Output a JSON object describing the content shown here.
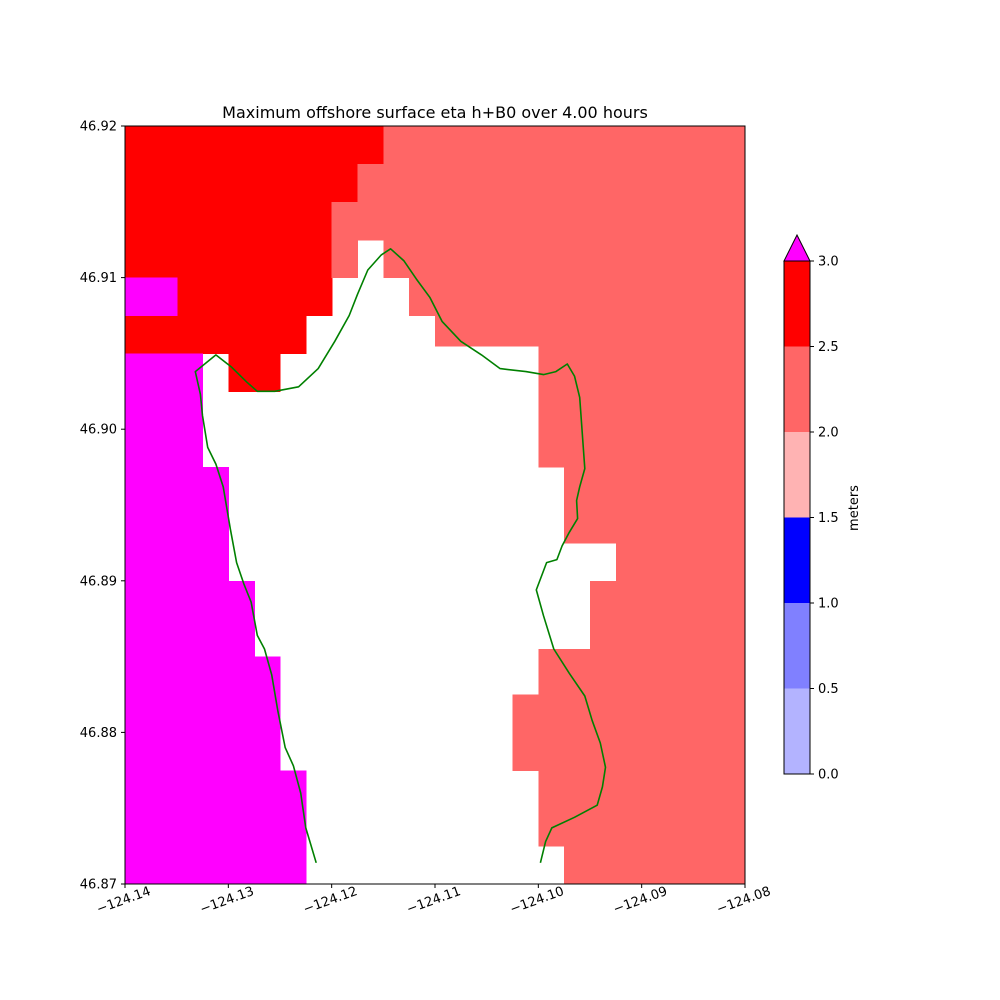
{
  "chart_data": {
    "type": "heatmap",
    "title": "Maximum offshore surface eta h+B0 over 4.00 hours",
    "xlabel": "",
    "ylabel": "",
    "xlim": [
      -124.14,
      -124.08
    ],
    "ylim": [
      46.87,
      46.92
    ],
    "xticks": [
      "−124.14",
      "−124.13",
      "−124.12",
      "−124.11",
      "−124.10",
      "−124.09",
      "−124.08"
    ],
    "xtick_values": [
      -124.14,
      -124.13,
      -124.12,
      -124.11,
      -124.1,
      -124.09,
      -124.08
    ],
    "yticks": [
      "46.87",
      "46.88",
      "46.89",
      "46.90",
      "46.91",
      "46.92"
    ],
    "ytick_values": [
      46.87,
      46.88,
      46.89,
      46.9,
      46.91,
      46.92
    ],
    "grid": false,
    "colorbar": {
      "label": "meters",
      "levels": [
        0.0,
        0.5,
        1.0,
        1.5,
        2.0,
        2.5,
        3.0
      ],
      "tick_labels": [
        "0.0",
        "0.5",
        "1.0",
        "1.5",
        "2.0",
        "2.5",
        "3.0"
      ],
      "colors": [
        "#b3b3ff",
        "#8080ff",
        "#0000ff",
        "#ffb3b3",
        "#ff6666",
        "#ff0000"
      ],
      "over_color": "#ff00ff",
      "extend": "max"
    },
    "cell_classes": {
      "over": "> 3.0 m",
      "high": "2.5 - 3.0 m",
      "mid": "2.0 - 2.5 m"
    },
    "regions": [
      {
        "level": "high",
        "lon": [
          -124.14,
          -124.115
        ],
        "lat": [
          46.9175,
          46.92
        ]
      },
      {
        "level": "high",
        "lon": [
          -124.14,
          -124.1175
        ],
        "lat": [
          46.915,
          46.9175
        ]
      },
      {
        "level": "high",
        "lon": [
          -124.14,
          -124.12
        ],
        "lat": [
          46.91,
          46.915
        ]
      },
      {
        "level": "high",
        "lon": [
          -124.135,
          -124.12
        ],
        "lat": [
          46.9075,
          46.91
        ]
      },
      {
        "level": "high",
        "lon": [
          -124.14,
          -124.1225
        ],
        "lat": [
          46.905,
          46.9075
        ]
      },
      {
        "level": "high",
        "lon": [
          -124.13,
          -124.125
        ],
        "lat": [
          46.9025,
          46.905
        ]
      },
      {
        "level": "over",
        "lon": [
          -124.14,
          -124.135
        ],
        "lat": [
          46.9075,
          46.91
        ]
      },
      {
        "level": "over",
        "lon": [
          -124.14,
          -124.1325
        ],
        "lat": [
          46.8975,
          46.905
        ]
      },
      {
        "level": "over",
        "lon": [
          -124.14,
          -124.13
        ],
        "lat": [
          46.89,
          46.8975
        ]
      },
      {
        "level": "over",
        "lon": [
          -124.14,
          -124.1275
        ],
        "lat": [
          46.885,
          46.89
        ]
      },
      {
        "level": "over",
        "lon": [
          -124.14,
          -124.125
        ],
        "lat": [
          46.8775,
          46.885
        ]
      },
      {
        "level": "over",
        "lon": [
          -124.14,
          -124.1225
        ],
        "lat": [
          46.87,
          46.8775
        ]
      },
      {
        "level": "mid",
        "lon": [
          -124.115,
          -124.08
        ],
        "lat": [
          46.9175,
          46.92
        ]
      },
      {
        "level": "mid",
        "lon": [
          -124.1175,
          -124.08
        ],
        "lat": [
          46.915,
          46.9175
        ]
      },
      {
        "level": "mid",
        "lon": [
          -124.12,
          -124.08
        ],
        "lat": [
          46.9125,
          46.915
        ]
      },
      {
        "level": "mid",
        "lon": [
          -124.12,
          -124.1175
        ],
        "lat": [
          46.91,
          46.9125
        ]
      },
      {
        "level": "mid",
        "lon": [
          -124.115,
          -124.08
        ],
        "lat": [
          46.91,
          46.9125
        ]
      },
      {
        "level": "mid",
        "lon": [
          -124.1125,
          -124.08
        ],
        "lat": [
          46.9075,
          46.91
        ]
      },
      {
        "level": "mid",
        "lon": [
          -124.11,
          -124.08
        ],
        "lat": [
          46.9055,
          46.9075
        ]
      },
      {
        "level": "mid",
        "lon": [
          -124.1,
          -124.08
        ],
        "lat": [
          46.8975,
          46.9055
        ]
      },
      {
        "level": "mid",
        "lon": [
          -124.0975,
          -124.08
        ],
        "lat": [
          46.8925,
          46.8975
        ]
      },
      {
        "level": "mid",
        "lon": [
          -124.0925,
          -124.08
        ],
        "lat": [
          46.89,
          46.8925
        ]
      },
      {
        "level": "mid",
        "lon": [
          -124.095,
          -124.08
        ],
        "lat": [
          46.8855,
          46.89
        ]
      },
      {
        "level": "mid",
        "lon": [
          -124.1,
          -124.08
        ],
        "lat": [
          46.8825,
          46.8855
        ]
      },
      {
        "level": "mid",
        "lon": [
          -124.1025,
          -124.08
        ],
        "lat": [
          46.8775,
          46.8825
        ]
      },
      {
        "level": "mid",
        "lon": [
          -124.1,
          -124.08
        ],
        "lat": [
          46.8725,
          46.8775
        ]
      },
      {
        "level": "mid",
        "lon": [
          -124.0975,
          -124.08
        ],
        "lat": [
          46.87,
          46.8725
        ]
      }
    ],
    "coastline": [
      [
        -124.1215,
        46.8714
      ],
      [
        -124.1225,
        46.8737
      ],
      [
        -124.123,
        46.876
      ],
      [
        -124.1237,
        46.8778
      ],
      [
        -124.1245,
        46.879
      ],
      [
        -124.1252,
        46.8814
      ],
      [
        -124.1258,
        46.8838
      ],
      [
        -124.1265,
        46.8855
      ],
      [
        -124.1272,
        46.8864
      ],
      [
        -124.1278,
        46.8886
      ],
      [
        -124.1285,
        46.8898
      ],
      [
        -124.1292,
        46.8912
      ],
      [
        -124.1298,
        46.8934
      ],
      [
        -124.1305,
        46.8962
      ],
      [
        -124.1312,
        46.8977
      ],
      [
        -124.132,
        46.8988
      ],
      [
        -124.1325,
        46.9009
      ],
      [
        -124.1327,
        46.9023
      ],
      [
        -124.1332,
        46.9038
      ],
      [
        -124.1312,
        46.9049
      ],
      [
        -124.1297,
        46.9041
      ],
      [
        -124.1282,
        46.9031
      ],
      [
        -124.1272,
        46.9025
      ],
      [
        -124.1255,
        46.9025
      ],
      [
        -124.1232,
        46.9028
      ],
      [
        -124.1213,
        46.904
      ],
      [
        -124.1197,
        46.9058
      ],
      [
        -124.1183,
        46.9075
      ],
      [
        -124.1175,
        46.9089
      ],
      [
        -124.1165,
        46.9105
      ],
      [
        -124.1152,
        46.9115
      ],
      [
        -124.1143,
        46.9119
      ],
      [
        -124.113,
        46.9111
      ],
      [
        -124.1118,
        46.9099
      ],
      [
        -124.1105,
        46.9087
      ],
      [
        -124.1093,
        46.9071
      ],
      [
        -124.1075,
        46.9058
      ],
      [
        -124.1055,
        46.9049
      ],
      [
        -124.1037,
        46.904
      ],
      [
        -124.1012,
        46.9038
      ],
      [
        -124.0995,
        46.9036
      ],
      [
        -124.0983,
        46.9038
      ],
      [
        -124.0972,
        46.9043
      ],
      [
        -124.0965,
        46.9035
      ],
      [
        -124.096,
        46.9021
      ],
      [
        -124.0955,
        46.8974
      ],
      [
        -124.096,
        46.8962
      ],
      [
        -124.0963,
        46.8953
      ],
      [
        -124.0962,
        46.8941
      ],
      [
        -124.097,
        46.8932
      ],
      [
        -124.0977,
        46.8923
      ],
      [
        -124.0982,
        46.8914
      ],
      [
        -124.0992,
        46.8912
      ],
      [
        -124.1002,
        46.8894
      ],
      [
        -124.0995,
        46.8877
      ],
      [
        -124.0985,
        46.8855
      ],
      [
        -124.097,
        46.8839
      ],
      [
        -124.0955,
        46.8824
      ],
      [
        -124.0948,
        46.8808
      ],
      [
        -124.094,
        46.8793
      ],
      [
        -124.0935,
        46.8777
      ],
      [
        -124.0938,
        46.8764
      ],
      [
        -124.0943,
        46.8752
      ],
      [
        -124.0965,
        46.8744
      ],
      [
        -124.0987,
        46.8737
      ],
      [
        -124.0993,
        46.8728
      ],
      [
        -124.0998,
        46.8714
      ]
    ]
  }
}
